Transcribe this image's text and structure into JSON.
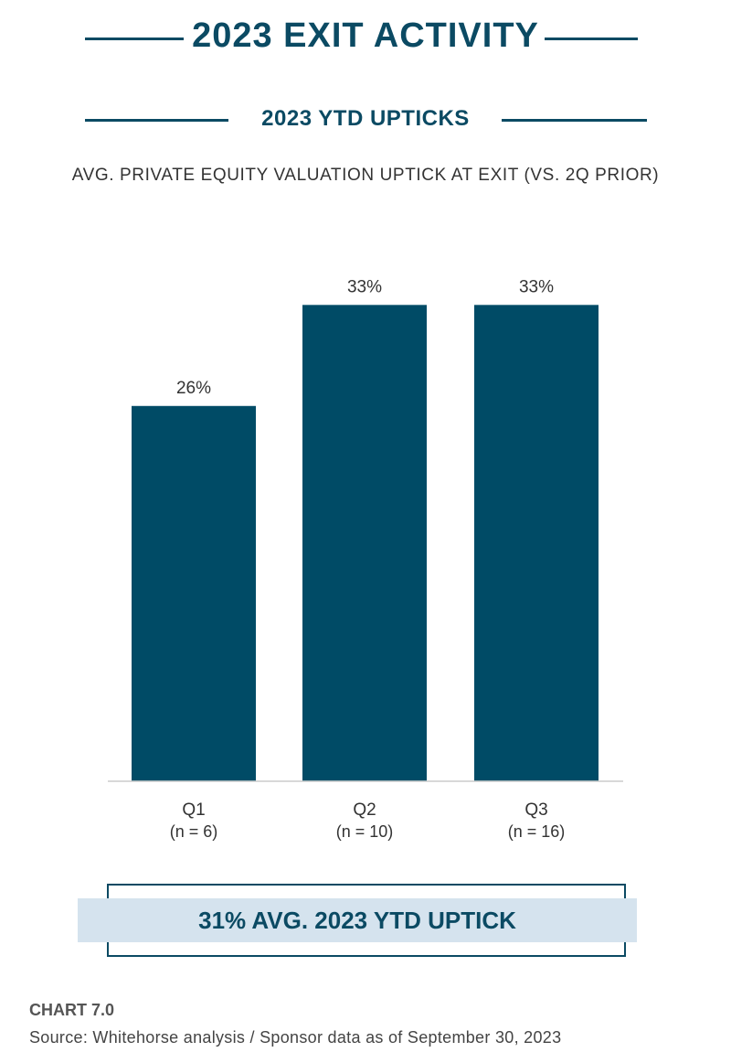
{
  "header": {
    "title": "2023 EXIT ACTIVITY",
    "section_title": "2023 YTD UPTICKS"
  },
  "chart_data": {
    "type": "bar",
    "title": "AVG. PRIVATE EQUITY VALUATION UPTICK AT EXIT (VS. 2Q PRIOR)",
    "categories": [
      "Q1",
      "Q2",
      "Q3"
    ],
    "category_sublabels": [
      "(n = 6)",
      "(n = 10)",
      "(n = 16)"
    ],
    "values": [
      26,
      33,
      33
    ],
    "data_labels": [
      "26%",
      "33%",
      "33%"
    ],
    "unit": "%",
    "ylim": [
      0,
      36
    ],
    "grid": false,
    "bar_color": "#004b66"
  },
  "summary": {
    "text": "31% AVG. 2023 YTD UPTICK"
  },
  "footer": {
    "chart_label": "CHART 7.0",
    "source": "Source: Whitehorse analysis / Sponsor data as of September 30, 2023"
  },
  "colors": {
    "accent": "#0b4a63",
    "band": "#d5e3ee"
  }
}
